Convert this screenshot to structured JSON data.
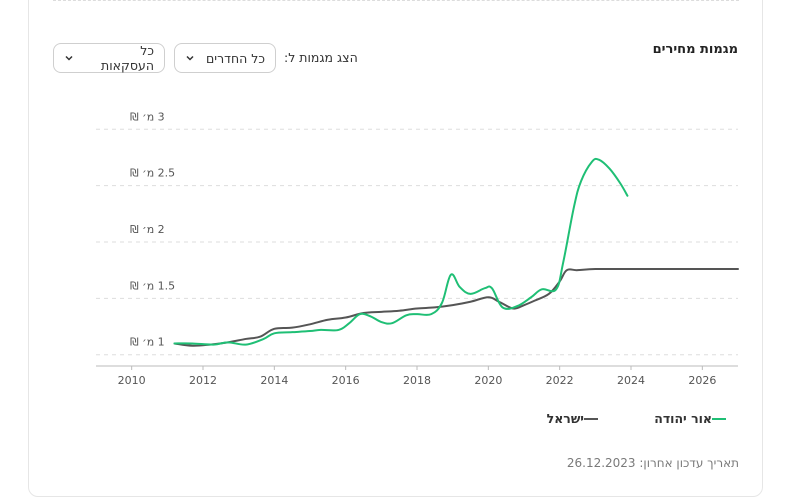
{
  "section_title": "מגמות מחירים",
  "filter_label": "הצג מגמות ל:",
  "rooms_dropdown": {
    "value": "כל החדרים"
  },
  "deals_dropdown": {
    "value": "כל העסקאות"
  },
  "legend": {
    "series1": "אור יהודה",
    "series2": "ישראל"
  },
  "updated_text": "תאריך עדכון אחרון: 26.12.2023",
  "colors": {
    "series1": "#1fbf75",
    "series2": "#555555",
    "grid": "#dddddd"
  },
  "chart_data": {
    "type": "line",
    "title": "מגמות מחירים",
    "xlabel": "",
    "ylabel": "",
    "xlim": [
      2009,
      2027
    ],
    "ylim": [
      0.9,
      3.1
    ],
    "x_ticks": [
      2010,
      2012,
      2014,
      2016,
      2018,
      2020,
      2022,
      2024,
      2026
    ],
    "y_ticks": [
      {
        "value": 1,
        "label": "1 מ׳ ₪"
      },
      {
        "value": 1.5,
        "label": "1.5 מ׳ ₪"
      },
      {
        "value": 2,
        "label": "2 מ׳ ₪"
      },
      {
        "value": 2.5,
        "label": "2.5 מ׳ ₪"
      },
      {
        "value": 3,
        "label": "3 מ׳ ₪"
      }
    ],
    "series": [
      {
        "name": "אור יהודה",
        "points": [
          [
            2011.2,
            1.1
          ],
          [
            2011.7,
            1.1
          ],
          [
            2012.3,
            1.09
          ],
          [
            2012.7,
            1.11
          ],
          [
            2013.2,
            1.09
          ],
          [
            2013.7,
            1.14
          ],
          [
            2014.0,
            1.19
          ],
          [
            2014.5,
            1.2
          ],
          [
            2015.0,
            1.21
          ],
          [
            2015.3,
            1.22
          ],
          [
            2015.8,
            1.22
          ],
          [
            2016.1,
            1.28
          ],
          [
            2016.4,
            1.36
          ],
          [
            2016.7,
            1.34
          ],
          [
            2017.0,
            1.29
          ],
          [
            2017.3,
            1.28
          ],
          [
            2017.7,
            1.35
          ],
          [
            2018.0,
            1.36
          ],
          [
            2018.4,
            1.36
          ],
          [
            2018.7,
            1.46
          ],
          [
            2018.95,
            1.71
          ],
          [
            2019.2,
            1.6
          ],
          [
            2019.5,
            1.54
          ],
          [
            2019.9,
            1.59
          ],
          [
            2020.1,
            1.59
          ],
          [
            2020.4,
            1.42
          ],
          [
            2020.8,
            1.43
          ],
          [
            2021.2,
            1.51
          ],
          [
            2021.5,
            1.58
          ],
          [
            2021.9,
            1.58
          ],
          [
            2022.1,
            1.82
          ],
          [
            2022.4,
            2.31
          ],
          [
            2022.6,
            2.54
          ],
          [
            2022.9,
            2.71
          ],
          [
            2023.1,
            2.73
          ],
          [
            2023.4,
            2.65
          ],
          [
            2023.7,
            2.52
          ],
          [
            2023.9,
            2.41
          ]
        ]
      },
      {
        "name": "ישראל",
        "points": [
          [
            2011.2,
            1.1
          ],
          [
            2011.7,
            1.08
          ],
          [
            2012.2,
            1.09
          ],
          [
            2012.7,
            1.11
          ],
          [
            2013.2,
            1.14
          ],
          [
            2013.6,
            1.16
          ],
          [
            2014.0,
            1.23
          ],
          [
            2014.5,
            1.24
          ],
          [
            2015.0,
            1.27
          ],
          [
            2015.5,
            1.31
          ],
          [
            2016.0,
            1.33
          ],
          [
            2016.5,
            1.37
          ],
          [
            2017.0,
            1.38
          ],
          [
            2017.5,
            1.39
          ],
          [
            2018.0,
            1.41
          ],
          [
            2018.5,
            1.42
          ],
          [
            2019.0,
            1.44
          ],
          [
            2019.5,
            1.47
          ],
          [
            2020.0,
            1.51
          ],
          [
            2020.3,
            1.47
          ],
          [
            2020.7,
            1.41
          ],
          [
            2021.0,
            1.44
          ],
          [
            2021.3,
            1.48
          ],
          [
            2021.7,
            1.54
          ],
          [
            2022.0,
            1.65
          ],
          [
            2022.2,
            1.75
          ],
          [
            2022.5,
            1.75
          ],
          [
            2023.0,
            1.76
          ],
          [
            2024.0,
            1.76
          ],
          [
            2026.0,
            1.76
          ],
          [
            2027.0,
            1.76
          ]
        ]
      }
    ]
  }
}
